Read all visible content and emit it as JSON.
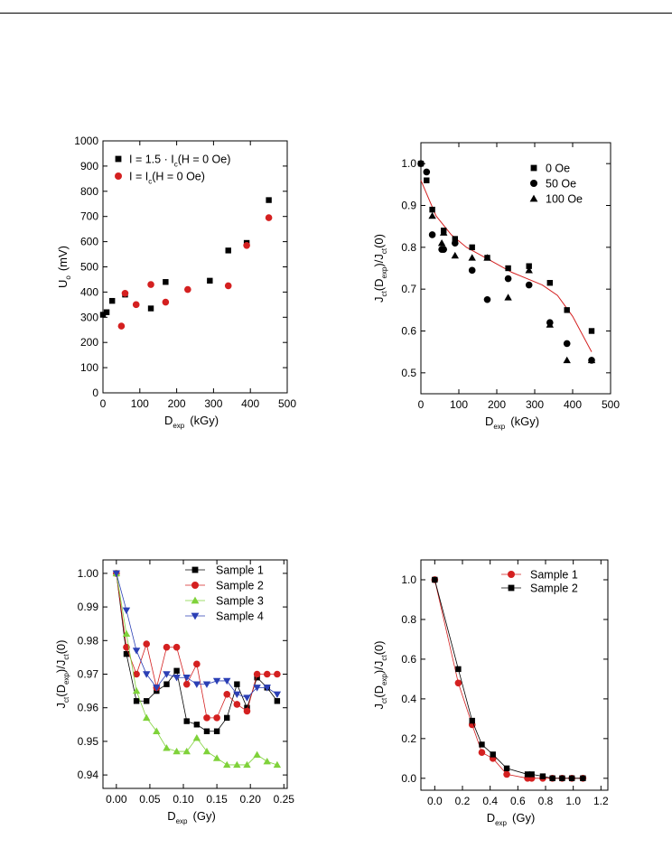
{
  "chart_data": [
    {
      "type": "scatter",
      "xlabel": "D",
      "xlabel_sub": "exp",
      "xlabel_unit": "(kGy)",
      "ylabel": "U",
      "ylabel_sub": "o",
      "ylabel_unit": "(mV)",
      "xlim": [
        0,
        500
      ],
      "ylim": [
        0,
        1000
      ],
      "xticks": [
        0,
        100,
        200,
        300,
        400,
        500
      ],
      "yticks": [
        0,
        100,
        200,
        300,
        400,
        500,
        600,
        700,
        800,
        900,
        1000
      ],
      "legend_position": "top-left",
      "series": [
        {
          "name": "I = 1.5 · Ic(H = 0 Oe)",
          "marker": "square",
          "color": "#000000",
          "x": [
            0,
            10,
            25,
            60,
            130,
            170,
            290,
            340,
            390,
            450
          ],
          "y": [
            310,
            320,
            365,
            390,
            335,
            440,
            445,
            565,
            595,
            765
          ]
        },
        {
          "name": "I = Ic(H = 0 Oe)",
          "marker": "circle",
          "color": "#d42020",
          "x": [
            50,
            60,
            90,
            130,
            170,
            230,
            340,
            390,
            450
          ],
          "y": [
            265,
            395,
            350,
            430,
            360,
            410,
            425,
            585,
            695
          ]
        }
      ]
    },
    {
      "type": "scatter",
      "xlabel": "D",
      "xlabel_sub": "exp",
      "xlabel_unit": "(kGy)",
      "ylabel": "J",
      "ylabel_sub": "ct",
      "ylabel_mid": "(D",
      "ylabel_sub2": "exp",
      "ylabel_tail": ")/J",
      "ylabel_sub3": "ct",
      "ylabel_end": "(0)",
      "xlim": [
        0,
        500
      ],
      "ylim": [
        0.45,
        1.05
      ],
      "xticks": [
        0,
        100,
        200,
        300,
        400,
        500
      ],
      "yticks": [
        0.5,
        0.6,
        0.7,
        0.8,
        0.9,
        1.0
      ],
      "ytick_labels": [
        "0.5",
        "0.6",
        "0.7",
        "0.8",
        "0.9",
        "1.0"
      ],
      "legend_position": "top-right",
      "series": [
        {
          "name": "0 Oe",
          "marker": "square",
          "x": [
            0,
            15,
            30,
            60,
            90,
            135,
            175,
            230,
            285,
            340,
            385,
            450
          ],
          "y": [
            1.0,
            0.96,
            0.89,
            0.84,
            0.82,
            0.8,
            0.775,
            0.75,
            0.755,
            0.715,
            0.65,
            0.6
          ]
        },
        {
          "name": "50 Oe",
          "marker": "circle",
          "x": [
            0,
            15,
            30,
            55,
            60,
            90,
            135,
            175,
            230,
            285,
            340,
            385,
            450
          ],
          "y": [
            1.0,
            0.98,
            0.83,
            0.795,
            0.795,
            0.81,
            0.745,
            0.675,
            0.725,
            0.71,
            0.62,
            0.57,
            0.53
          ]
        },
        {
          "name": "100 Oe",
          "marker": "triangle",
          "x": [
            30,
            55,
            60,
            90,
            135,
            175,
            230,
            285,
            340,
            385,
            450
          ],
          "y": [
            0.875,
            0.81,
            0.835,
            0.78,
            0.775,
            0.775,
            0.68,
            0.745,
            0.615,
            0.53,
            0.53
          ]
        }
      ],
      "fit_curve": {
        "color": "#d42020",
        "x": [
          0,
          40,
          80,
          120,
          160,
          200,
          240,
          280,
          320,
          360,
          400,
          450
        ],
        "y": [
          0.96,
          0.875,
          0.83,
          0.8,
          0.78,
          0.76,
          0.74,
          0.725,
          0.71,
          0.685,
          0.635,
          0.55
        ]
      }
    },
    {
      "type": "line",
      "xlabel": "D",
      "xlabel_sub": "exp",
      "xlabel_unit": "(Gy)",
      "ylabel": "J",
      "ylabel_sub": "ct",
      "ylabel_mid": "(D",
      "ylabel_sub2": "exp",
      "ylabel_tail": ")/J",
      "ylabel_sub3": "ct",
      "ylabel_end": "(0)",
      "xlim": [
        -0.02,
        0.255
      ],
      "ylim": [
        0.936,
        1.004
      ],
      "xticks": [
        0.0,
        0.05,
        0.1,
        0.15,
        0.2,
        0.25
      ],
      "xtick_labels": [
        "0.00",
        "0.05",
        "0.10",
        "0.15",
        "0.20",
        "0.25"
      ],
      "yticks": [
        0.94,
        0.95,
        0.96,
        0.97,
        0.98,
        0.99,
        1.0
      ],
      "ytick_labels": [
        "0.94",
        "0.95",
        "0.96",
        "0.97",
        "0.98",
        "0.99",
        "1.00"
      ],
      "legend_position": "top-right",
      "series": [
        {
          "name": "Sample 1",
          "marker": "square",
          "color": "#000000",
          "x": [
            0.0,
            0.015,
            0.03,
            0.045,
            0.06,
            0.075,
            0.09,
            0.105,
            0.12,
            0.135,
            0.15,
            0.165,
            0.18,
            0.195,
            0.21,
            0.225,
            0.24
          ],
          "y": [
            1.0,
            0.976,
            0.962,
            0.962,
            0.965,
            0.967,
            0.971,
            0.956,
            0.955,
            0.953,
            0.953,
            0.957,
            0.967,
            0.96,
            0.969,
            0.966,
            0.962
          ]
        },
        {
          "name": "Sample 2",
          "marker": "circle",
          "color": "#d42020",
          "x": [
            0.0,
            0.015,
            0.03,
            0.045,
            0.06,
            0.075,
            0.09,
            0.105,
            0.12,
            0.135,
            0.15,
            0.165,
            0.18,
            0.195,
            0.21,
            0.225,
            0.24
          ],
          "y": [
            1.0,
            0.978,
            0.97,
            0.979,
            0.966,
            0.978,
            0.978,
            0.967,
            0.973,
            0.957,
            0.957,
            0.964,
            0.961,
            0.959,
            0.97,
            0.97,
            0.97
          ]
        },
        {
          "name": "Sample 3",
          "marker": "triangle",
          "color": "#7fd23a",
          "x": [
            0.0,
            0.015,
            0.03,
            0.045,
            0.06,
            0.075,
            0.09,
            0.105,
            0.12,
            0.135,
            0.15,
            0.165,
            0.18,
            0.195,
            0.21,
            0.225,
            0.24
          ],
          "y": [
            1.0,
            0.982,
            0.965,
            0.957,
            0.953,
            0.948,
            0.947,
            0.947,
            0.951,
            0.947,
            0.945,
            0.943,
            0.943,
            0.943,
            0.946,
            0.944,
            0.943
          ]
        },
        {
          "name": "Sample 4",
          "marker": "triangle-down",
          "color": "#2b3fb5",
          "x": [
            0.0,
            0.015,
            0.03,
            0.045,
            0.06,
            0.075,
            0.09,
            0.105,
            0.12,
            0.135,
            0.15,
            0.165,
            0.18,
            0.195,
            0.21,
            0.225,
            0.24
          ],
          "y": [
            1.0,
            0.989,
            0.977,
            0.97,
            0.966,
            0.97,
            0.969,
            0.969,
            0.967,
            0.967,
            0.968,
            0.968,
            0.964,
            0.963,
            0.966,
            0.966,
            0.964
          ]
        }
      ]
    },
    {
      "type": "line",
      "xlabel": "D",
      "xlabel_sub": "exp",
      "xlabel_unit": "(Gy)",
      "ylabel": "J",
      "ylabel_sub": "ct",
      "ylabel_mid": "(D",
      "ylabel_sub2": "exp",
      "ylabel_tail": ")/J",
      "ylabel_sub3": "ct",
      "ylabel_end": "(0)",
      "xlim": [
        -0.1,
        1.25
      ],
      "ylim": [
        -0.06,
        1.1
      ],
      "xticks": [
        0.0,
        0.2,
        0.4,
        0.6,
        0.8,
        1.0,
        1.2
      ],
      "xtick_labels": [
        "0.0",
        "0.2",
        "0.4",
        "0.6",
        "0.8",
        "1.0",
        "1.2"
      ],
      "yticks": [
        0.0,
        0.2,
        0.4,
        0.6,
        0.8,
        1.0
      ],
      "ytick_labels": [
        "0.0",
        "0.2",
        "0.4",
        "0.6",
        "0.8",
        "1.0"
      ],
      "legend_position": "top-right",
      "series": [
        {
          "name": "Sample 1",
          "marker": "circle",
          "color": "#d42020",
          "x": [
            0.0,
            0.17,
            0.27,
            0.34,
            0.42,
            0.52,
            0.67,
            0.7,
            0.78,
            0.85,
            0.92,
            0.99,
            1.07
          ],
          "y": [
            1.0,
            0.48,
            0.27,
            0.13,
            0.1,
            0.02,
            0.0,
            0.0,
            0.0,
            0.0,
            0.0,
            0.0,
            0.0
          ]
        },
        {
          "name": "Sample 2",
          "marker": "square",
          "color": "#000000",
          "x": [
            0.0,
            0.17,
            0.27,
            0.34,
            0.42,
            0.52,
            0.67,
            0.7,
            0.78,
            0.85,
            0.92,
            0.99,
            1.07
          ],
          "y": [
            1.0,
            0.55,
            0.29,
            0.17,
            0.12,
            0.05,
            0.02,
            0.02,
            0.01,
            0.0,
            0.0,
            0.0,
            0.0
          ]
        }
      ]
    }
  ]
}
